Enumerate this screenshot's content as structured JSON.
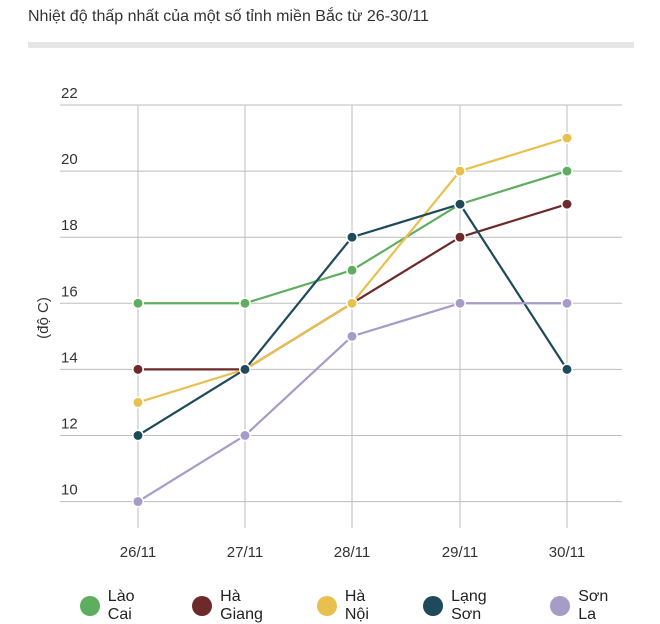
{
  "header": {
    "title": "Nhiệt độ thấp nhất của một số tỉnh miền Bắc từ 26-30/11"
  },
  "chart_data": {
    "type": "line",
    "title": "Nhiệt độ thấp nhất của một số tỉnh miền Bắc từ 26-30/11",
    "xlabel": "",
    "ylabel": "(độ C)",
    "categories": [
      "26/11",
      "27/11",
      "28/11",
      "29/11",
      "30/11"
    ],
    "yticks": [
      10,
      12,
      14,
      16,
      18,
      20,
      22
    ],
    "ylim": [
      9.2,
      22
    ],
    "grid": true,
    "legend_position": "bottom",
    "series": [
      {
        "name": "Lào Cai",
        "color": "#5fae60",
        "values": [
          16,
          16,
          17,
          19,
          20
        ]
      },
      {
        "name": "Hà Giang",
        "color": "#6e2a2a",
        "values": [
          14,
          14,
          16,
          18,
          19
        ]
      },
      {
        "name": "Hà Nội",
        "color": "#e8c04e",
        "values": [
          13,
          14,
          16,
          20,
          21
        ]
      },
      {
        "name": "Lạng Sơn",
        "color": "#1f4a5c",
        "values": [
          12,
          14,
          18,
          19,
          14
        ]
      },
      {
        "name": "Sơn La",
        "color": "#a79bc8",
        "values": [
          10,
          12,
          15,
          16,
          16
        ]
      }
    ]
  }
}
